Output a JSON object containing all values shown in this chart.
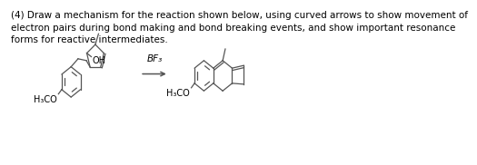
{
  "title_text": "(4) Draw a mechanism for the reaction shown below, using curved arrows to show movement of\nelectron pairs during bond making and bond breaking events, and show important resonance\nforms for reactive intermediates.",
  "bf3_label": "BF₃",
  "oh_label": "OH",
  "h3co_label1": "H₃CO",
  "h3co_label2": "H₃CO",
  "background_color": "#ffffff",
  "text_color": "#000000",
  "font_size_title": 7.5,
  "line_color": "#555555",
  "line_width": 0.9
}
